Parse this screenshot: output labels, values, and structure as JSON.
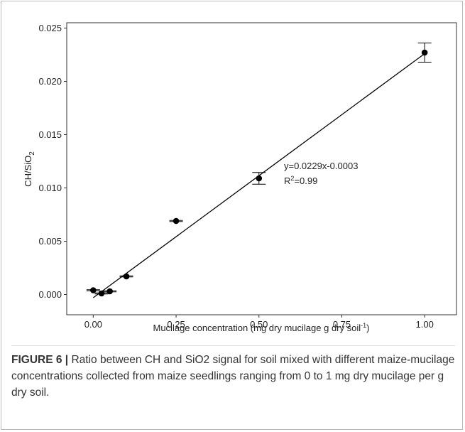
{
  "chart_data": {
    "type": "scatter",
    "y_label": [
      "CH/SiO",
      "2"
    ],
    "x_label": [
      "Mucilage concentration (mg dry mucilage g dry soil",
      "-1",
      ")"
    ],
    "annotations": [
      "y=0.0229x-0.0003",
      [
        "R",
        "2",
        "=0.99"
      ]
    ],
    "x": [
      0,
      0.025,
      0.05,
      0.1,
      0.25,
      0.5,
      1.0
    ],
    "values": [
      0.0004,
      0.0001,
      0.0003,
      0.0017,
      0.0069,
      0.0109,
      0.0227
    ],
    "errors": [
      5e-05,
      5e-05,
      5e-05,
      5e-05,
      5e-05,
      0.00055,
      0.0009
    ],
    "fit": {
      "slope": 0.0229,
      "intercept": -0.0003
    },
    "color": "#000000",
    "xlim": [
      -0.08,
      1.096
    ],
    "ylim": [
      -0.0019,
      0.0255
    ],
    "xticks": [
      {
        "value": 0,
        "label": "0.00"
      },
      {
        "value": 0.25,
        "label": "0.25"
      },
      {
        "value": 0.5,
        "label": "0.50"
      },
      {
        "value": 0.75,
        "label": "0.75"
      },
      {
        "value": 1,
        "label": "1.00"
      }
    ],
    "yticks": [
      {
        "value": 0,
        "label": "0.000"
      },
      {
        "value": 0.005,
        "label": "0.005"
      },
      {
        "value": 0.01,
        "label": "0.010"
      },
      {
        "value": 0.015,
        "label": "0.015"
      },
      {
        "value": 0.02,
        "label": "0.020"
      },
      {
        "value": 0.025,
        "label": "0.025"
      }
    ]
  },
  "caption": {
    "label": "FIGURE 6 |",
    "text": "Ratio between CH and SiO2 signal for soil mixed with different maize-mucilage concentrations collected from maize seedlings ranging from 0 to 1 mg dry mucilage per g dry soil."
  }
}
